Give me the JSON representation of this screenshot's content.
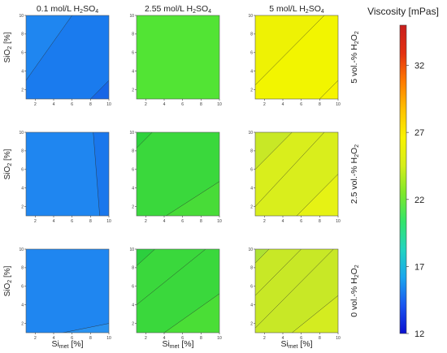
{
  "chart_data": {
    "type": "heatmap",
    "colorbar": {
      "title": "Viscosity [mPas]",
      "min": 12,
      "max": 35,
      "ticks": [
        12,
        17,
        22,
        27,
        32
      ],
      "colors": [
        "#0a10d0",
        "#1a55f0",
        "#1aa6ee",
        "#22d4c0",
        "#33e46a",
        "#7ee829",
        "#d6ee1a",
        "#f9f300",
        "#ffc000",
        "#ff7a00",
        "#e33010",
        "#c81e1e"
      ]
    },
    "columns": [
      {
        "id": "c1",
        "prefix": "0.1 mol/L H",
        "sub1": "2",
        "mid": "SO",
        "sub2": "4"
      },
      {
        "id": "c2",
        "prefix": "2.55 mol/L H",
        "sub1": "2",
        "mid": "SO",
        "sub2": "4"
      },
      {
        "id": "c3",
        "prefix": "5 mol/L H",
        "sub1": "2",
        "mid": "SO",
        "sub2": "4"
      }
    ],
    "rows": [
      {
        "id": "r1",
        "prefix": "5 vol.-% H",
        "sub1": "2",
        "mid": "O",
        "sub2": "2"
      },
      {
        "id": "r2",
        "prefix": "2.5 vol.-% H",
        "sub1": "2",
        "mid": "O",
        "sub2": "2"
      },
      {
        "id": "r3",
        "prefix": "0 vol.-% H",
        "sub1": "2",
        "mid": "O",
        "sub2": "2"
      }
    ],
    "xlabel": {
      "main": "Si",
      "sub": "met",
      "unit": " [%]"
    },
    "ylabel": {
      "main": "SiO",
      "sub": "2",
      "unit": " [%]"
    },
    "x_ticks": [
      2,
      4,
      6,
      8,
      10
    ],
    "y_ticks": [
      2,
      4,
      6,
      8,
      10
    ],
    "xlim": [
      1,
      10
    ],
    "ylim": [
      1,
      10
    ],
    "panels": [
      {
        "row": 0,
        "col": 0,
        "base_color": "#1f86f0",
        "contours": [
          [
            1,
            3,
            6,
            10
          ],
          [
            8,
            1,
            10,
            3
          ]
        ],
        "regions": [
          {
            "pts": [
              [
                1,
                1
              ],
              [
                1,
                3
              ],
              [
                6,
                10
              ],
              [
                10,
                10
              ],
              [
                10,
                3
              ],
              [
                8,
                1
              ]
            ],
            "color": "#1a7bee"
          },
          {
            "pts": [
              [
                8,
                1
              ],
              [
                10,
                3
              ],
              [
                10,
                1
              ]
            ],
            "color": "#1766e6"
          }
        ]
      },
      {
        "row": 0,
        "col": 1,
        "base_color": "#52e434",
        "contours": [],
        "regions": []
      },
      {
        "row": 0,
        "col": 2,
        "base_color": "#f2f500",
        "contours": [
          [
            1,
            2.5,
            8.5,
            10
          ],
          [
            8,
            1,
            10,
            3
          ]
        ],
        "regions": [
          {
            "pts": [
              [
                1,
                2.5
              ],
              [
                1,
                10
              ],
              [
                8.5,
                10
              ]
            ],
            "color": "#eef204"
          },
          {
            "pts": [
              [
                8,
                1
              ],
              [
                10,
                3
              ],
              [
                10,
                1
              ]
            ],
            "color": "#f6f400"
          }
        ]
      },
      {
        "row": 1,
        "col": 0,
        "base_color": "#1f86f0",
        "contours": [
          [
            8.3,
            10,
            9,
            1
          ]
        ],
        "regions": [
          {
            "pts": [
              [
                8.3,
                10
              ],
              [
                10,
                10
              ],
              [
                10,
                1
              ],
              [
                9,
                1
              ]
            ],
            "color": "#1a77ec"
          }
        ]
      },
      {
        "row": 1,
        "col": 1,
        "base_color": "#3ad83c",
        "contours": [
          [
            1,
            8.3,
            2.7,
            10
          ],
          [
            4.2,
            1,
            10,
            4.7
          ]
        ],
        "regions": [
          {
            "pts": [
              [
                1,
                8.3
              ],
              [
                1,
                10
              ],
              [
                2.7,
                10
              ]
            ],
            "color": "#2ed23c"
          },
          {
            "pts": [
              [
                4.2,
                1
              ],
              [
                10,
                4.7
              ],
              [
                10,
                1
              ]
            ],
            "color": "#48dc38"
          }
        ]
      },
      {
        "row": 1,
        "col": 2,
        "base_color": "#d9ee1c",
        "contours": [
          [
            1,
            6,
            5,
            10
          ],
          [
            1,
            2,
            8.5,
            10
          ],
          [
            5.5,
            1,
            10,
            5.5
          ]
        ],
        "regions": [
          {
            "pts": [
              [
                1,
                6
              ],
              [
                1,
                10
              ],
              [
                5,
                10
              ]
            ],
            "color": "#c8e826"
          },
          {
            "pts": [
              [
                5.5,
                1
              ],
              [
                10,
                5.5
              ],
              [
                10,
                1
              ]
            ],
            "color": "#e6f214"
          }
        ]
      },
      {
        "row": 2,
        "col": 0,
        "base_color": "#1f86f0",
        "contours": [
          [
            5,
            1,
            10,
            2
          ]
        ],
        "regions": [
          {
            "pts": [
              [
                5,
                1
              ],
              [
                10,
                2
              ],
              [
                10,
                1
              ]
            ],
            "color": "#2a92f0"
          }
        ]
      },
      {
        "row": 2,
        "col": 1,
        "base_color": "#3ad83c",
        "contours": [
          [
            1,
            8.2,
            3,
            10
          ],
          [
            1,
            4,
            8.5,
            10
          ],
          [
            4,
            1,
            10,
            5.2
          ]
        ],
        "regions": [
          {
            "pts": [
              [
                1,
                8.2
              ],
              [
                1,
                10
              ],
              [
                3,
                10
              ]
            ],
            "color": "#2ccf3e"
          },
          {
            "pts": [
              [
                4,
                1
              ],
              [
                10,
                5.2
              ],
              [
                10,
                1
              ]
            ],
            "color": "#4ade36"
          }
        ]
      },
      {
        "row": 2,
        "col": 2,
        "base_color": "#c8e826",
        "contours": [
          [
            1,
            8.5,
            2.5,
            10
          ],
          [
            1,
            5,
            6,
            10
          ],
          [
            1,
            1.5,
            9.5,
            10
          ],
          [
            5,
            1,
            10,
            5
          ]
        ],
        "regions": [
          {
            "pts": [
              [
                1,
                8.5
              ],
              [
                1,
                10
              ],
              [
                2.5,
                10
              ]
            ],
            "color": "#aee232"
          },
          {
            "pts": [
              [
                5,
                1
              ],
              [
                10,
                5
              ],
              [
                10,
                1
              ]
            ],
            "color": "#d4ec20"
          }
        ]
      }
    ]
  }
}
